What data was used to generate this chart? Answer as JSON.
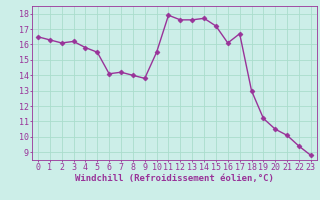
{
  "x": [
    0,
    1,
    2,
    3,
    4,
    5,
    6,
    7,
    8,
    9,
    10,
    11,
    12,
    13,
    14,
    15,
    16,
    17,
    18,
    19,
    20,
    21,
    22,
    23
  ],
  "y": [
    16.5,
    16.3,
    16.1,
    16.2,
    15.8,
    15.5,
    14.1,
    14.2,
    14.0,
    13.8,
    15.5,
    17.9,
    17.6,
    17.6,
    17.7,
    17.2,
    16.1,
    16.7,
    13.0,
    11.2,
    10.5,
    10.1,
    9.4,
    8.8
  ],
  "line_color": "#993399",
  "marker": "D",
  "markersize": 2.5,
  "linewidth": 1.0,
  "bg_color": "#cceee8",
  "grid_color": "#aaddcc",
  "xlabel": "Windchill (Refroidissement éolien,°C)",
  "xlabel_fontsize": 6.5,
  "tick_fontsize": 6.0,
  "ylim": [
    8.5,
    18.5
  ],
  "xlim": [
    -0.5,
    23.5
  ],
  "yticks": [
    9,
    10,
    11,
    12,
    13,
    14,
    15,
    16,
    17,
    18
  ],
  "xticks": [
    0,
    1,
    2,
    3,
    4,
    5,
    6,
    7,
    8,
    9,
    10,
    11,
    12,
    13,
    14,
    15,
    16,
    17,
    18,
    19,
    20,
    21,
    22,
    23
  ],
  "spine_color": "#993399",
  "label_color": "#993399"
}
